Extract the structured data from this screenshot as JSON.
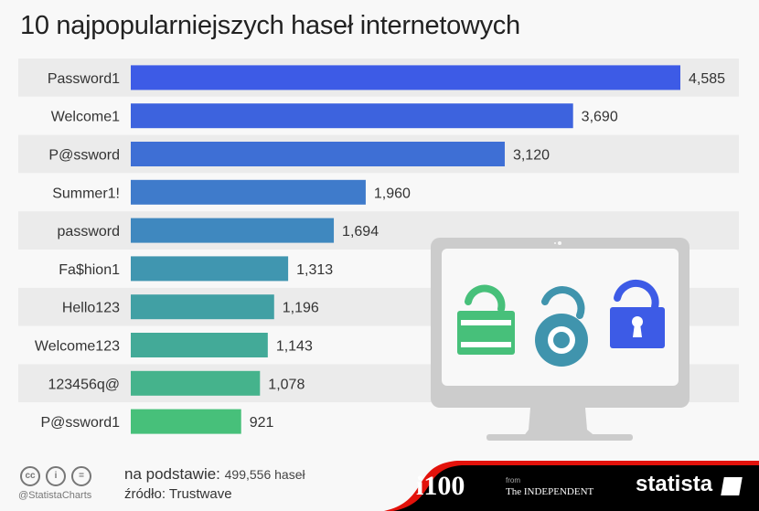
{
  "title": "10 najpopularniejszych haseł internetowych",
  "chart_data": {
    "type": "bar",
    "orientation": "horizontal",
    "title": "10 najpopularniejszych haseł internetowych",
    "categories": [
      "Password1",
      "Welcome1",
      "P@ssword",
      "Summer1!",
      "password",
      "Fa$hion1",
      "Hello123",
      "Welcome123",
      "123456q@",
      "P@ssword1"
    ],
    "values": [
      4585,
      3690,
      3120,
      1960,
      1694,
      1313,
      1196,
      1143,
      1078,
      921
    ],
    "value_labels": [
      "4,585",
      "3,690",
      "3,120",
      "1,960",
      "1,694",
      "1,313",
      "1,196",
      "1,143",
      "1,078",
      "921"
    ],
    "colors": [
      "#3d5be6",
      "#3d63de",
      "#3e6fd5",
      "#3f7bcb",
      "#3f88bf",
      "#4096b0",
      "#41a0a4",
      "#43aa98",
      "#45b38c",
      "#47c07a"
    ],
    "xlim": [
      0,
      4585
    ],
    "grid": false
  },
  "footer": {
    "basis_label": "na podstawie:",
    "basis_value": "499,556 haseł",
    "source": "źródło: Trustwave",
    "handle": "@StatistaCharts",
    "cc_icons": [
      "cc",
      "i",
      "="
    ],
    "brand_i100": "i100",
    "brand_from": "from",
    "brand_independent": "The INDEPENDENT",
    "brand_statista": "statista"
  }
}
